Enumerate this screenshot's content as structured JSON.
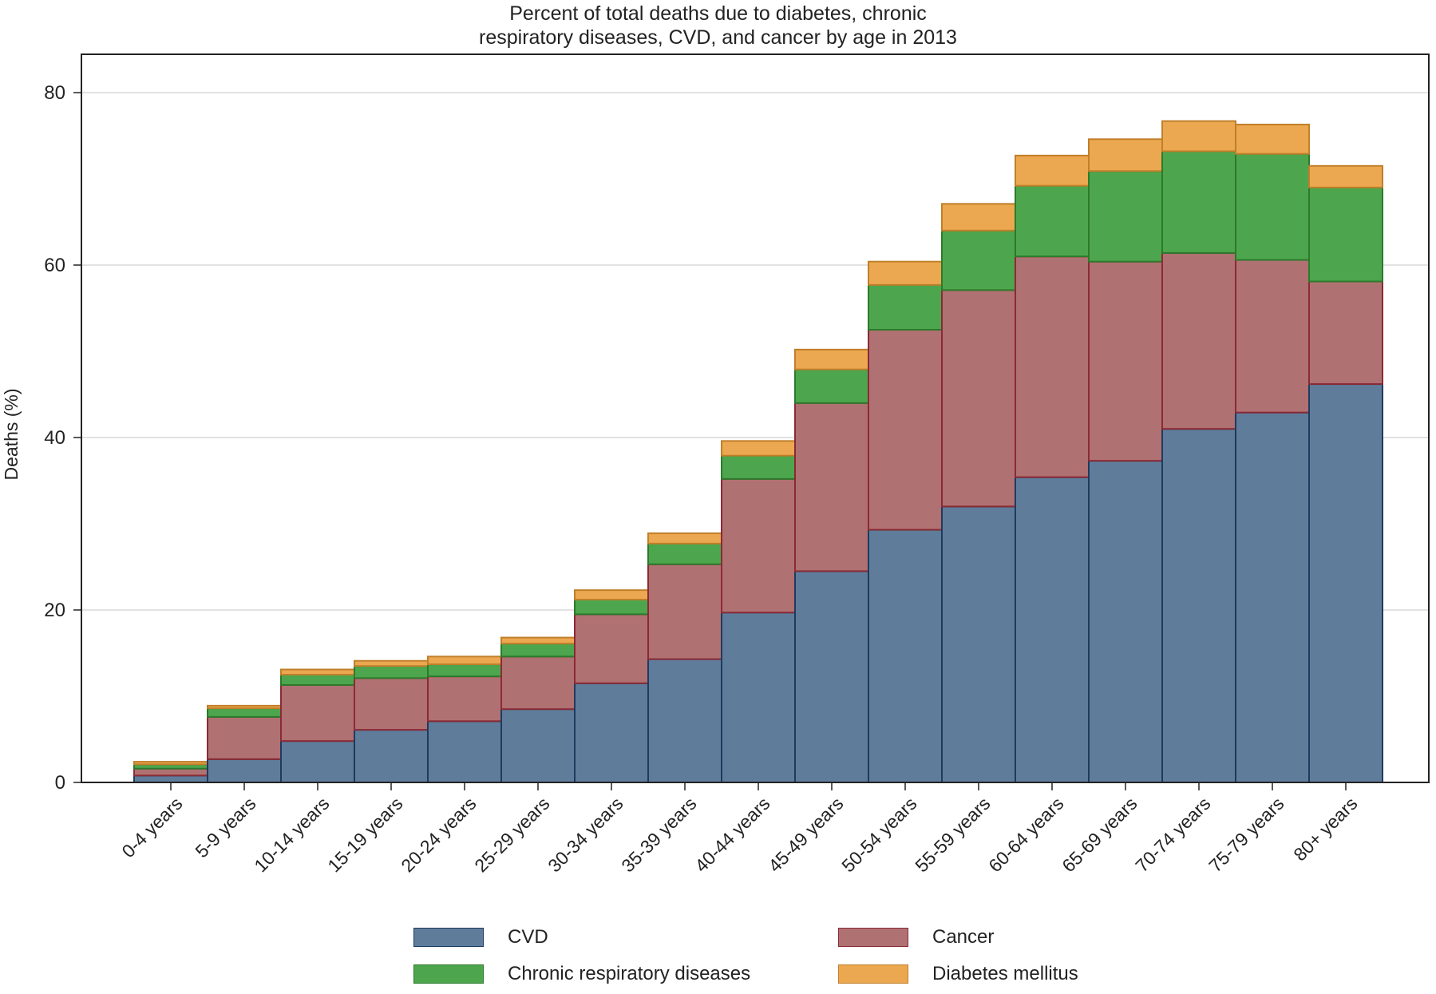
{
  "chart_data": {
    "type": "bar",
    "stacked": true,
    "title": "Percent of total deaths due to diabetes, chronic respiratory diseases, CVD, and cancer by age in 2013",
    "title_lines": [
      "Percent of total deaths due to diabetes, chronic",
      "respiratory diseases, CVD, and cancer by age in 2013"
    ],
    "xlabel": "",
    "ylabel": "Deaths (%)",
    "ylim": [
      0,
      80
    ],
    "yticks": [
      0,
      20,
      40,
      60,
      80
    ],
    "ytick_labels": [
      "0",
      "20",
      "40",
      "60",
      "80"
    ],
    "grid": true,
    "legend_position": "bottom",
    "categories": [
      "0-4 years",
      "5-9 years",
      "10-14 years",
      "15-19 years",
      "20-24 years",
      "25-29 years",
      "30-34 years",
      "35-39 years",
      "40-44 years",
      "45-49 years",
      "50-54 years",
      "55-59 years",
      "60-64 years",
      "65-69 years",
      "70-74 years",
      "75-79 years",
      "80+ years"
    ],
    "series": [
      {
        "name": "CVD",
        "color": "#5f7d9b",
        "edge": "#1f3a5f",
        "values": [
          0.8,
          2.7,
          4.8,
          6.1,
          7.1,
          8.5,
          11.5,
          14.3,
          19.7,
          24.5,
          29.3,
          32.0,
          35.4,
          37.3,
          41.0,
          42.9,
          46.2
        ]
      },
      {
        "name": "Cancer",
        "color": "#b07172",
        "edge": "#8a2a35",
        "values": [
          0.8,
          4.9,
          6.5,
          6.0,
          5.2,
          6.1,
          8.0,
          11.0,
          15.5,
          19.5,
          23.2,
          25.1,
          25.6,
          23.1,
          20.4,
          17.7,
          11.9
        ]
      },
      {
        "name": "Chronic respiratory diseases",
        "color": "#4da64d",
        "edge": "#2c7a2c",
        "values": [
          0.5,
          1.0,
          1.2,
          1.4,
          1.4,
          1.5,
          1.7,
          2.4,
          2.7,
          3.9,
          5.2,
          6.9,
          8.2,
          10.5,
          11.8,
          12.3,
          10.9
        ]
      },
      {
        "name": "Diabetes mellitus",
        "color": "#eca850",
        "edge": "#c07f2a",
        "values": [
          0.3,
          0.3,
          0.6,
          0.6,
          0.9,
          0.7,
          1.1,
          1.2,
          1.7,
          2.3,
          2.7,
          3.1,
          3.5,
          3.7,
          3.5,
          3.4,
          2.5
        ]
      }
    ]
  }
}
